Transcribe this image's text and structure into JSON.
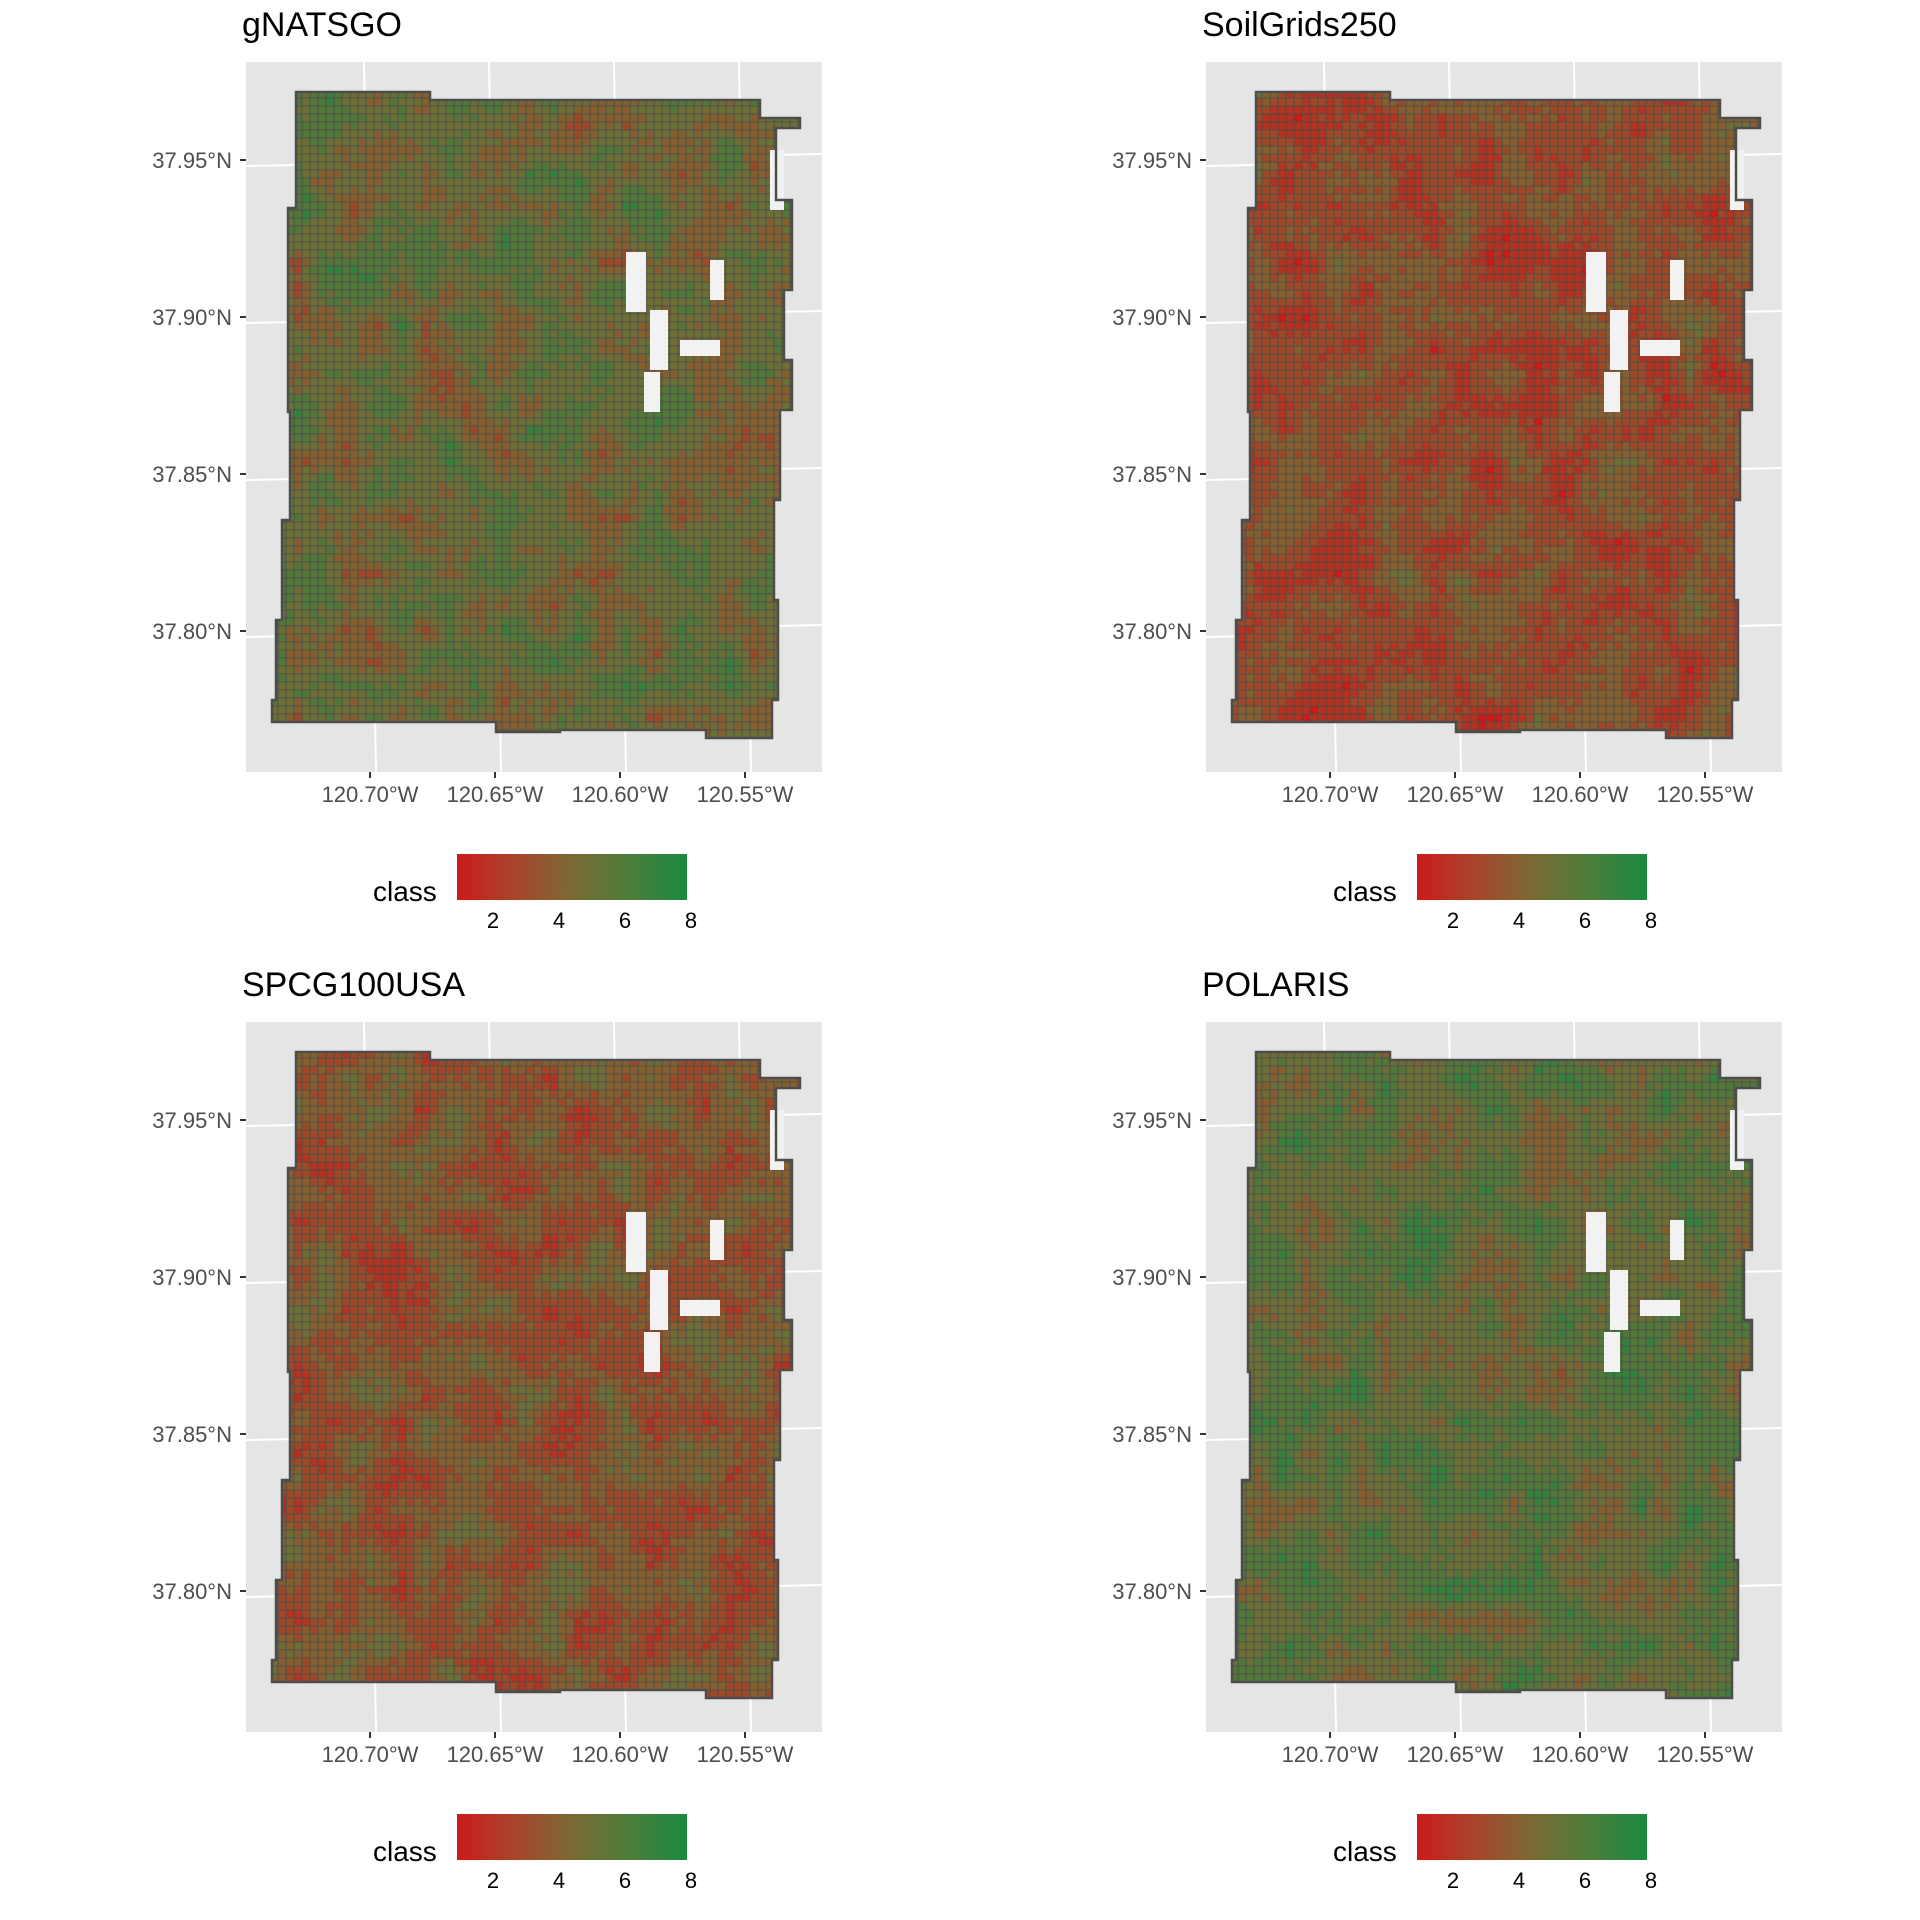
{
  "colors": {
    "low": "#cc1a1a",
    "mid": "#7b6a33",
    "high": "#1a8a3f",
    "panel_bg": "#e5e5e5",
    "grid": "#ffffff",
    "outline": "#4d4d4d",
    "water": "#f2f2f2"
  },
  "axes": {
    "y_ticks": [
      "37.95°N",
      "37.90°N",
      "37.85°N",
      "37.80°N"
    ],
    "x_ticks": [
      "120.70°W",
      "120.65°W",
      "120.60°W",
      "120.55°W"
    ]
  },
  "legend": {
    "title": "class",
    "labels": [
      "2",
      "4",
      "6",
      "8"
    ],
    "range": [
      1,
      8
    ]
  },
  "panels": [
    {
      "title": "gNATSGO",
      "palette_bias": 0.7,
      "pattern_seed": 11
    },
    {
      "title": "SoilGrids250",
      "palette_bias": 0.2,
      "pattern_seed": 23
    },
    {
      "title": "SPCG100USA",
      "palette_bias": 0.35,
      "pattern_seed": 37
    },
    {
      "title": "POLARIS",
      "palette_bias": 0.8,
      "pattern_seed": 53
    }
  ]
}
